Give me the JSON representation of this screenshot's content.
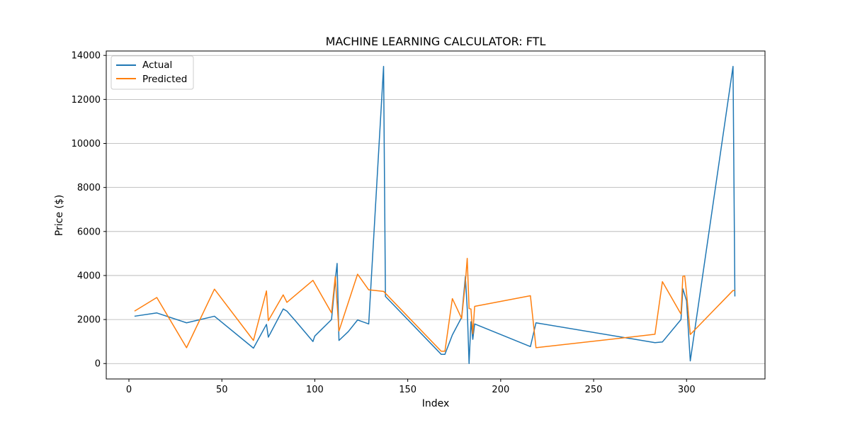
{
  "chart_data": {
    "type": "line",
    "title": "MACHINE LEARNING CALCULATOR: FTL",
    "xlabel": "Index",
    "ylabel": "Price ($)",
    "xlim": [
      -12.2,
      342.2
    ],
    "ylim": [
      -700,
      14200
    ],
    "xticks": [
      0,
      50,
      100,
      150,
      200,
      250,
      300
    ],
    "yticks": [
      0,
      2000,
      4000,
      6000,
      8000,
      10000,
      12000,
      14000
    ],
    "grid": "y-major",
    "legend": "top-left",
    "series": [
      {
        "name": "Actual",
        "color": "#1f77b4",
        "points": [
          [
            3,
            2150
          ],
          [
            15,
            2300
          ],
          [
            31,
            1850
          ],
          [
            46,
            2150
          ],
          [
            67,
            700
          ],
          [
            74,
            1780
          ],
          [
            75,
            1200
          ],
          [
            83,
            2480
          ],
          [
            85,
            2380
          ],
          [
            90,
            1900
          ],
          [
            99,
            1000
          ],
          [
            100,
            1250
          ],
          [
            109,
            2000
          ],
          [
            111,
            3800
          ],
          [
            112,
            4550
          ],
          [
            113,
            1050
          ],
          [
            118,
            1450
          ],
          [
            123,
            1980
          ],
          [
            129,
            1800
          ],
          [
            137,
            13500
          ],
          [
            138,
            3050
          ],
          [
            168,
            420
          ],
          [
            170,
            420
          ],
          [
            174,
            1300
          ],
          [
            179,
            2100
          ],
          [
            181,
            3950
          ],
          [
            182,
            2500
          ],
          [
            183,
            0
          ],
          [
            184,
            1900
          ],
          [
            185,
            1100
          ],
          [
            186,
            1800
          ],
          [
            216,
            770
          ],
          [
            219,
            1850
          ],
          [
            283,
            950
          ],
          [
            287,
            980
          ],
          [
            297,
            2000
          ],
          [
            298,
            3400
          ],
          [
            300,
            2850
          ],
          [
            302,
            120
          ],
          [
            325,
            13500
          ],
          [
            326,
            3050
          ]
        ]
      },
      {
        "name": "Predicted",
        "color": "#ff7f0e",
        "points": [
          [
            3,
            2380
          ],
          [
            15,
            3000
          ],
          [
            31,
            720
          ],
          [
            46,
            3380
          ],
          [
            67,
            1050
          ],
          [
            74,
            3300
          ],
          [
            75,
            1950
          ],
          [
            83,
            3120
          ],
          [
            85,
            2780
          ],
          [
            99,
            3780
          ],
          [
            109,
            2300
          ],
          [
            111,
            3950
          ],
          [
            113,
            1480
          ],
          [
            123,
            4060
          ],
          [
            129,
            3350
          ],
          [
            137,
            3280
          ],
          [
            168,
            560
          ],
          [
            170,
            560
          ],
          [
            174,
            2950
          ],
          [
            179,
            2050
          ],
          [
            181,
            3700
          ],
          [
            182,
            4780
          ],
          [
            183,
            2500
          ],
          [
            184,
            2480
          ],
          [
            185,
            1350
          ],
          [
            186,
            2600
          ],
          [
            216,
            3080
          ],
          [
            219,
            720
          ],
          [
            283,
            1330
          ],
          [
            287,
            3720
          ],
          [
            297,
            2250
          ],
          [
            298,
            3960
          ],
          [
            299,
            3980
          ],
          [
            300,
            3200
          ],
          [
            302,
            1320
          ],
          [
            325,
            3320
          ],
          [
            326,
            3320
          ]
        ]
      }
    ]
  }
}
